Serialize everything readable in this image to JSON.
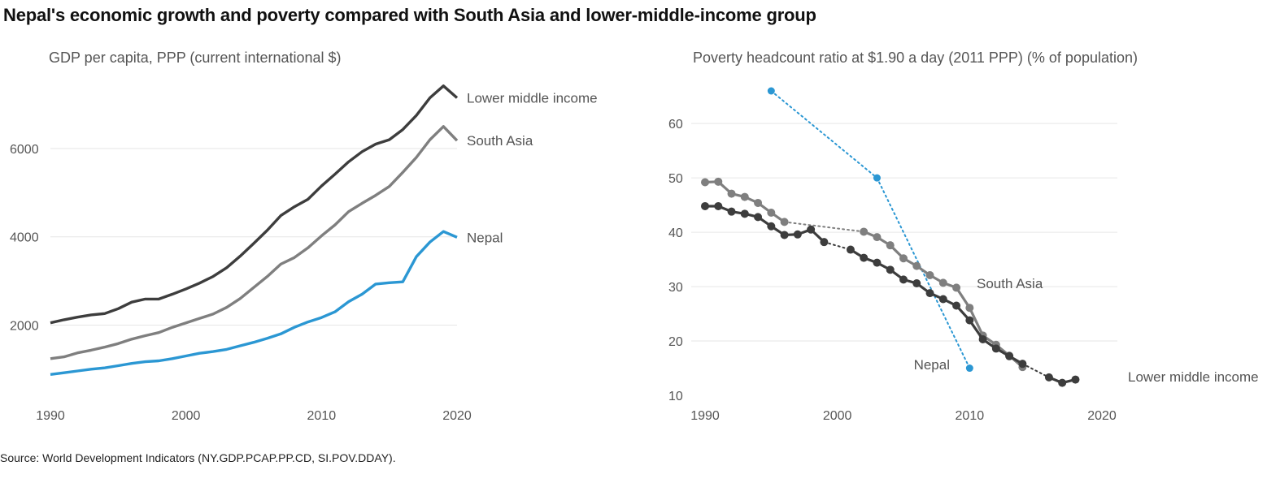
{
  "title": "Nepal's economic growth and poverty compared with South Asia and lower-middle-income group",
  "source": "Source: World Development Indicators (NY.GDP.PCAP.PP.CD, SI.POV.DDAY).",
  "colors": {
    "lmi": "#3d3d3d",
    "south_asia": "#7f7f7f",
    "nepal": "#2b97d3",
    "grid": "#e6e6e6",
    "text": "#555555"
  },
  "chart_data": [
    {
      "type": "line",
      "title": "GDP per capita, PPP (current international $)",
      "xlabel": "",
      "ylabel": "",
      "xlim": [
        1990,
        2020
      ],
      "ylim": [
        500,
        7600
      ],
      "xticks": [
        1990,
        2000,
        2010,
        2020
      ],
      "yticks": [
        2000,
        4000,
        6000
      ],
      "grid": true,
      "x": [
        1990,
        1991,
        1992,
        1993,
        1994,
        1995,
        1996,
        1997,
        1998,
        1999,
        2000,
        2001,
        2002,
        2003,
        2004,
        2005,
        2006,
        2007,
        2008,
        2009,
        2010,
        2011,
        2012,
        2013,
        2014,
        2015,
        2016,
        2017,
        2018,
        2019,
        2020
      ],
      "series": [
        {
          "name": "Lower middle income",
          "color_key": "lmi",
          "values": [
            2050,
            2120,
            2180,
            2230,
            2260,
            2370,
            2520,
            2590,
            2590,
            2700,
            2820,
            2950,
            3100,
            3300,
            3560,
            3850,
            4150,
            4480,
            4680,
            4850,
            5150,
            5420,
            5700,
            5930,
            6100,
            6200,
            6430,
            6750,
            7150,
            7420,
            7150
          ]
        },
        {
          "name": "South Asia",
          "color_key": "south_asia",
          "values": [
            1240,
            1280,
            1370,
            1430,
            1500,
            1580,
            1680,
            1760,
            1830,
            1950,
            2050,
            2150,
            2250,
            2400,
            2600,
            2850,
            3100,
            3380,
            3530,
            3750,
            4020,
            4270,
            4570,
            4760,
            4940,
            5140,
            5460,
            5800,
            6200,
            6500,
            6180
          ]
        },
        {
          "name": "Nepal",
          "color_key": "nepal",
          "values": [
            880,
            920,
            960,
            1000,
            1030,
            1080,
            1130,
            1170,
            1190,
            1240,
            1300,
            1360,
            1400,
            1450,
            1530,
            1610,
            1700,
            1800,
            1950,
            2070,
            2170,
            2300,
            2530,
            2700,
            2930,
            2960,
            2980,
            3550,
            3880,
            4120,
            3990
          ]
        }
      ]
    },
    {
      "type": "line",
      "title": "Poverty headcount ratio at $1.90 a day (2011 PPP) (% of population)",
      "xlabel": "",
      "ylabel": "",
      "xlim": [
        1990,
        2020
      ],
      "ylim": [
        10,
        66
      ],
      "xticks": [
        1990,
        2000,
        2010,
        2020
      ],
      "yticks": [
        10,
        20,
        30,
        40,
        50,
        60
      ],
      "grid": true,
      "series": [
        {
          "name": "Nepal",
          "color_key": "nepal",
          "points": [
            [
              1995,
              66.0
            ],
            [
              2003,
              50.0
            ],
            [
              2010,
              15.0
            ]
          ]
        },
        {
          "name": "South Asia",
          "color_key": "south_asia",
          "points": [
            [
              1990,
              49.2
            ],
            [
              1991,
              49.3
            ],
            [
              1992,
              47.1
            ],
            [
              1993,
              46.5
            ],
            [
              1994,
              45.4
            ],
            [
              1995,
              43.6
            ],
            [
              1996,
              41.9
            ],
            [
              2002,
              40.1
            ],
            [
              2003,
              39.1
            ],
            [
              2004,
              37.6
            ],
            [
              2005,
              35.2
            ],
            [
              2006,
              33.8
            ],
            [
              2007,
              32.1
            ],
            [
              2008,
              30.7
            ],
            [
              2009,
              29.8
            ],
            [
              2010,
              26.1
            ],
            [
              2011,
              21.0
            ],
            [
              2012,
              19.3
            ],
            [
              2013,
              17.3
            ],
            [
              2014,
              15.2
            ]
          ]
        },
        {
          "name": "Lower middle income",
          "color_key": "lmi",
          "points": [
            [
              1990,
              44.8
            ],
            [
              1991,
              44.8
            ],
            [
              1992,
              43.8
            ],
            [
              1993,
              43.4
            ],
            [
              1994,
              42.8
            ],
            [
              1995,
              41.1
            ],
            [
              1996,
              39.5
            ],
            [
              1997,
              39.6
            ],
            [
              1998,
              40.5
            ],
            [
              1999,
              38.2
            ],
            [
              2001,
              36.8
            ],
            [
              2002,
              35.3
            ],
            [
              2003,
              34.4
            ],
            [
              2004,
              33.1
            ],
            [
              2005,
              31.3
            ],
            [
              2006,
              30.6
            ],
            [
              2007,
              28.8
            ],
            [
              2008,
              27.7
            ],
            [
              2009,
              26.5
            ],
            [
              2010,
              23.8
            ],
            [
              2011,
              20.3
            ],
            [
              2012,
              18.6
            ],
            [
              2013,
              17.2
            ],
            [
              2014,
              15.8
            ],
            [
              2016,
              13.3
            ],
            [
              2017,
              12.3
            ],
            [
              2018,
              12.9
            ]
          ]
        }
      ]
    }
  ]
}
